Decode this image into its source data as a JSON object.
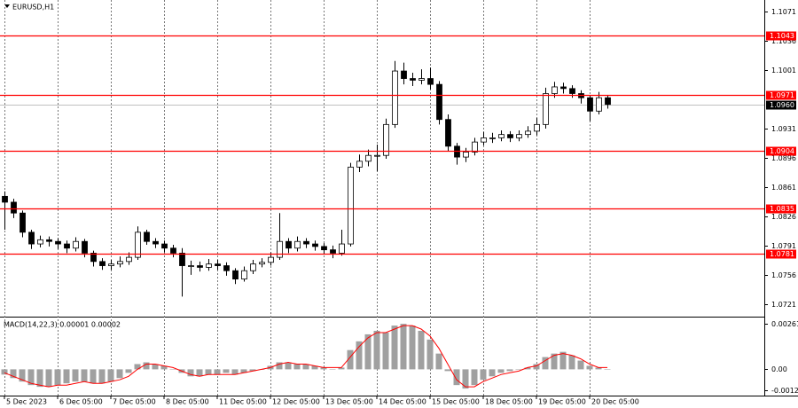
{
  "chart_data": [
    {
      "type": "candlestick",
      "title": "EURUSD,H1",
      "candles": [
        [
          1.085,
          1.0856,
          1.081,
          1.0843
        ],
        [
          1.0843,
          1.0847,
          1.0824,
          1.083
        ],
        [
          1.083,
          1.0833,
          1.0801,
          1.0807
        ],
        [
          1.0807,
          1.081,
          1.0787,
          1.0793
        ],
        [
          1.0793,
          1.0803,
          1.0789,
          1.0798
        ],
        [
          1.0798,
          1.0802,
          1.079,
          1.0796
        ],
        [
          1.0796,
          1.08,
          1.0787,
          1.0793
        ],
        [
          1.0793,
          1.0797,
          1.0782,
          1.0788
        ],
        [
          1.0788,
          1.0801,
          1.0784,
          1.0796
        ],
        [
          1.0796,
          1.0799,
          1.0777,
          1.0782
        ],
        [
          1.0782,
          1.0785,
          1.0766,
          1.0772
        ],
        [
          1.0772,
          1.0776,
          1.0762,
          1.0767
        ],
        [
          1.0767,
          1.0774,
          1.0762,
          1.0769
        ],
        [
          1.0769,
          1.0778,
          1.0765,
          1.0772
        ],
        [
          1.0772,
          1.0783,
          1.0768,
          1.0777
        ],
        [
          1.0777,
          1.0814,
          1.0774,
          1.0807
        ],
        [
          1.0807,
          1.081,
          1.0792,
          1.0796
        ],
        [
          1.0796,
          1.08,
          1.0788,
          1.0793
        ],
        [
          1.0793,
          1.0797,
          1.0783,
          1.0788
        ],
        [
          1.0788,
          1.0792,
          1.0777,
          1.0782
        ],
        [
          1.0782,
          1.0788,
          1.073,
          1.0767
        ],
        [
          1.0767,
          1.0773,
          1.0756,
          1.0767
        ],
        [
          1.0767,
          1.0772,
          1.076,
          1.0765
        ],
        [
          1.0765,
          1.0775,
          1.0761,
          1.0769
        ],
        [
          1.0769,
          1.0774,
          1.0762,
          1.0767
        ],
        [
          1.0767,
          1.0771,
          1.0755,
          1.0761
        ],
        [
          1.0761,
          1.0764,
          1.0745,
          1.0751
        ],
        [
          1.0751,
          1.0766,
          1.0748,
          1.0761
        ],
        [
          1.0761,
          1.0774,
          1.0757,
          1.0769
        ],
        [
          1.0769,
          1.0776,
          1.0765,
          1.0771
        ],
        [
          1.0771,
          1.0783,
          1.0767,
          1.0777
        ],
        [
          1.0777,
          1.083,
          1.0774,
          1.0796
        ],
        [
          1.0796,
          1.08,
          1.0782,
          1.0788
        ],
        [
          1.0788,
          1.0802,
          1.0784,
          1.0796
        ],
        [
          1.0796,
          1.08,
          1.0788,
          1.0793
        ],
        [
          1.0793,
          1.0797,
          1.0785,
          1.079
        ],
        [
          1.079,
          1.0794,
          1.0781,
          1.0786
        ],
        [
          1.0786,
          1.0791,
          1.0776,
          1.0782
        ],
        [
          1.0782,
          1.081,
          1.0779,
          1.0793
        ],
        [
          1.0793,
          1.089,
          1.079,
          1.0885
        ],
        [
          1.0885,
          1.09,
          1.0879,
          1.0892
        ],
        [
          1.0892,
          1.0906,
          1.0886,
          1.0899
        ],
        [
          1.0899,
          1.0912,
          1.088,
          1.0899
        ],
        [
          1.0899,
          1.0943,
          1.0895,
          1.0936
        ],
        [
          1.0936,
          1.1012,
          1.0932,
          1.1
        ],
        [
          1.1,
          1.101,
          1.0984,
          1.0991
        ],
        [
          1.0991,
          1.0998,
          1.0982,
          1.0989
        ],
        [
          1.0989,
          1.1002,
          1.0984,
          1.0991
        ],
        [
          1.0991,
          1.1004,
          1.0978,
          1.0984
        ],
        [
          1.0984,
          1.0988,
          1.0936,
          1.0942
        ],
        [
          1.0942,
          1.0948,
          1.0904,
          1.091
        ],
        [
          1.091,
          1.0914,
          1.0888,
          1.0897
        ],
        [
          1.0897,
          1.0908,
          1.0891,
          1.0903
        ],
        [
          1.0903,
          1.092,
          1.0899,
          1.0915
        ],
        [
          1.0915,
          1.0927,
          1.0911,
          1.092
        ],
        [
          1.092,
          1.0926,
          1.0914,
          1.092
        ],
        [
          1.092,
          1.0929,
          1.0916,
          1.0924
        ],
        [
          1.0924,
          1.0928,
          1.0915,
          1.092
        ],
        [
          1.092,
          1.0929,
          1.0916,
          1.0924
        ],
        [
          1.0924,
          1.0934,
          1.092,
          1.0928
        ],
        [
          1.0928,
          1.0944,
          1.0923,
          1.0936
        ],
        [
          1.0936,
          1.098,
          1.0931,
          1.0973
        ],
        [
          1.0973,
          1.0987,
          1.0968,
          1.0981
        ],
        [
          1.0981,
          1.0986,
          1.0973,
          1.0979
        ],
        [
          1.0979,
          1.0983,
          1.0968,
          1.0973
        ],
        [
          1.0973,
          1.0977,
          1.0961,
          1.0968
        ],
        [
          1.0968,
          1.0971,
          1.094,
          1.0952
        ],
        [
          1.0952,
          1.0975,
          1.0948,
          1.0968
        ],
        [
          1.0968,
          1.0971,
          1.0955,
          1.096
        ]
      ],
      "color": "#000000",
      "xlim": [
        -0.5,
        85.7
      ],
      "xticks": [
        {
          "value": 0,
          "label": "5 Dec 2023"
        },
        {
          "value": 6,
          "label": "6 Dec 05:00"
        },
        {
          "value": 12,
          "label": "7 Dec 05:00"
        },
        {
          "value": 18,
          "label": "8 Dec 05:00"
        },
        {
          "value": 24,
          "label": "11 Dec 05:00"
        },
        {
          "value": 30,
          "label": "12 Dec 05:00"
        },
        {
          "value": 36,
          "label": "13 Dec 05:00"
        },
        {
          "value": 42,
          "label": "14 Dec 05:00"
        },
        {
          "value": 48,
          "label": "15 Dec 05:00"
        },
        {
          "value": 54,
          "label": "18 Dec 05:00"
        },
        {
          "value": 60,
          "label": "19 Dec 05:00"
        },
        {
          "value": 66,
          "label": "20 Dec 05:00"
        }
      ],
      "ylim": [
        1.0706,
        1.1085
      ],
      "yticks": [
        1.1071,
        1.1036,
        1.1001,
        1.0931,
        1.0896,
        1.0861,
        1.0826,
        1.0791,
        1.0756,
        1.0721
      ],
      "levels": [
        1.1043,
        1.0971,
        1.0904,
        1.0835,
        1.0781
      ],
      "level_color": "#ff0000",
      "current_price": {
        "value": 1.096,
        "label": "1.0960"
      },
      "grid": true
    },
    {
      "type": "macd",
      "title": "MACD(14,22,3) 0.00001 0.00002",
      "histogram": [
        -0.0003,
        -0.0005,
        -0.0007,
        -0.0009,
        -0.001,
        -0.001,
        -0.0009,
        -0.0008,
        -0.0007,
        -0.0007,
        -0.0008,
        -0.0008,
        -0.0007,
        -0.0005,
        -0.0002,
        0.0003,
        0.0004,
        0.0003,
        0.0002,
        0,
        -0.0002,
        -0.0004,
        -0.0004,
        -0.0003,
        -0.0003,
        -0.0002,
        -0.0003,
        -0.0002,
        -0.0001,
        0,
        0.0002,
        0.0004,
        0.0004,
        0.0003,
        0.0003,
        0.0002,
        0.0001,
        0,
        0.0001,
        0.0011,
        0.0016,
        0.002,
        0.0022,
        0.0021,
        0.0025,
        0.0026,
        0.0025,
        0.0022,
        0.0017,
        0.0009,
        -0.0001,
        -0.0009,
        -0.0011,
        -0.0009,
        -0.0006,
        -0.0004,
        -0.0002,
        -0.0001,
        0,
        0.0001,
        0.0003,
        0.0007,
        0.0009,
        0.001,
        0.0008,
        0.0005,
        0.0002,
        0.0001,
        0
      ],
      "signal": [
        -0.0002,
        -0.0004,
        -0.0006,
        -0.0008,
        -0.0009,
        -0.001,
        -0.0009,
        -0.0009,
        -0.0008,
        -0.0007,
        -0.0008,
        -0.0008,
        -0.0007,
        -0.0006,
        -0.0004,
        0,
        0.0003,
        0.0003,
        0.0002,
        0.0001,
        -0.0001,
        -0.0003,
        -0.0004,
        -0.0003,
        -0.0003,
        -0.0003,
        -0.0003,
        -0.0002,
        -0.0001,
        0,
        0.0001,
        0.0003,
        0.0004,
        0.0003,
        0.0003,
        0.0002,
        0.0001,
        0.0001,
        0.0001,
        0.0007,
        0.0013,
        0.0018,
        0.0021,
        0.0021,
        0.0023,
        0.0025,
        0.0025,
        0.0023,
        0.0019,
        0.0012,
        0.0003,
        -0.0006,
        -0.001,
        -0.001,
        -0.0007,
        -0.0005,
        -0.0003,
        -0.0002,
        -0.0001,
        0.0001,
        0.0002,
        0.0005,
        0.0008,
        0.0009,
        0.0008,
        0.0006,
        0.0003,
        0.0001,
        0.0001
      ],
      "hist_color": "#a0a0a0",
      "signal_color": "#ff0000",
      "ylim": [
        -0.0015,
        0.00296
      ],
      "yticks": [
        0.00261,
        {
          "value": 0,
          "label": "0.00"
        },
        -0.00122
      ]
    }
  ]
}
